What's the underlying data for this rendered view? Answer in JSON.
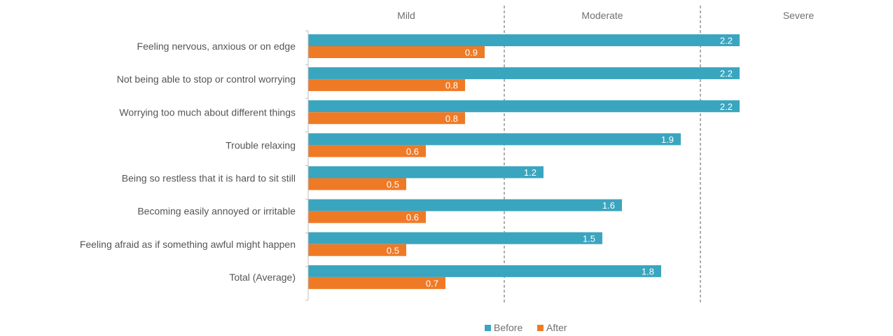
{
  "chart_data": {
    "type": "bar",
    "orientation": "horizontal",
    "categories": [
      "Feeling nervous, anxious or on edge",
      "Not being able to stop or control worrying",
      "Worrying too much about different things",
      "Trouble relaxing",
      "Being so restless that it is hard to sit still",
      "Becoming easily annoyed or irritable",
      "Feeling afraid as if something awful might happen",
      "Total (Average)"
    ],
    "series": [
      {
        "name": "Before",
        "color": "#3aa5bf",
        "values": [
          2.2,
          2.2,
          2.2,
          1.9,
          1.2,
          1.6,
          1.5,
          1.8
        ],
        "labels": [
          "2.2",
          "2.2",
          "2.2",
          "1.9",
          "1.2",
          "1.6",
          "1.5",
          "1.8"
        ]
      },
      {
        "name": "After",
        "color": "#ef7a26",
        "values": [
          0.9,
          0.8,
          0.8,
          0.6,
          0.5,
          0.6,
          0.5,
          0.7
        ],
        "labels": [
          "0.9",
          "0.8",
          "0.8",
          "0.6",
          "0.5",
          "0.6",
          "0.5",
          "0.7"
        ]
      }
    ],
    "xlim": [
      0,
      3
    ],
    "severity_regions": [
      "Mild",
      "Moderate",
      "Severe"
    ],
    "region_dividers": [
      1,
      2
    ],
    "grid": false,
    "legend_position": "bottom"
  }
}
